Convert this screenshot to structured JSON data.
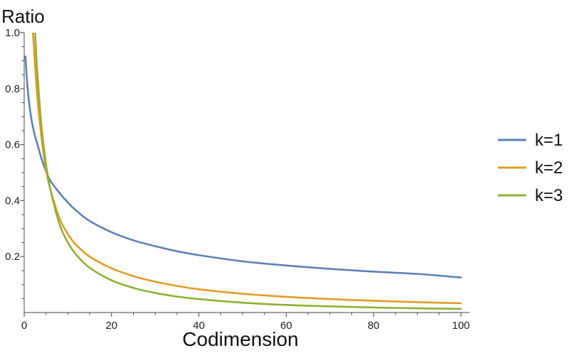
{
  "chart_data": {
    "type": "line",
    "title": "",
    "xlabel": "Codimension",
    "ylabel": "Ratio",
    "xlim": [
      0,
      100
    ],
    "ylim": [
      0,
      1.0
    ],
    "x_ticks": [
      0,
      20,
      40,
      60,
      80,
      100
    ],
    "x_tick_labels": [
      "0",
      "20",
      "40",
      "60",
      "80",
      "100"
    ],
    "y_ticks": [
      0.2,
      0.4,
      0.6,
      0.8,
      1.0
    ],
    "y_tick_labels": [
      "0.2",
      "0.4",
      "0.6",
      "0.8",
      "1.0"
    ],
    "grid": false,
    "legend_position": "right",
    "x": [
      0.3,
      0.6,
      1,
      1.5,
      2,
      2.5,
      3,
      4,
      5,
      6,
      8,
      10,
      12,
      15,
      20,
      25,
      30,
      35,
      40,
      50,
      60,
      70,
      80,
      90,
      100
    ],
    "series": [
      {
        "name": "k=1",
        "color": "#5e81b5",
        "values": [
          0.915,
          0.837,
          0.768,
          0.707,
          0.663,
          0.629,
          0.603,
          0.548,
          0.505,
          0.471,
          0.429,
          0.393,
          0.363,
          0.327,
          0.287,
          0.258,
          0.237,
          0.219,
          0.205,
          0.183,
          0.168,
          0.156,
          0.146,
          0.138,
          0.125
        ]
      },
      {
        "name": "k=2",
        "color": "#e19c24",
        "values": [
          null,
          null,
          null,
          null,
          1.0,
          0.88,
          0.77,
          0.62,
          0.51,
          0.44,
          0.34,
          0.28,
          0.24,
          0.2,
          0.158,
          0.13,
          0.11,
          0.095,
          0.083,
          0.067,
          0.056,
          0.048,
          0.042,
          0.037,
          0.033
        ]
      },
      {
        "name": "k=3",
        "color": "#8fb032",
        "values": [
          null,
          null,
          null,
          null,
          null,
          1.0,
          0.86,
          0.66,
          0.53,
          0.44,
          0.32,
          0.25,
          0.205,
          0.16,
          0.115,
          0.088,
          0.07,
          0.057,
          0.048,
          0.035,
          0.027,
          0.022,
          0.018,
          0.015,
          0.013
        ]
      }
    ]
  }
}
